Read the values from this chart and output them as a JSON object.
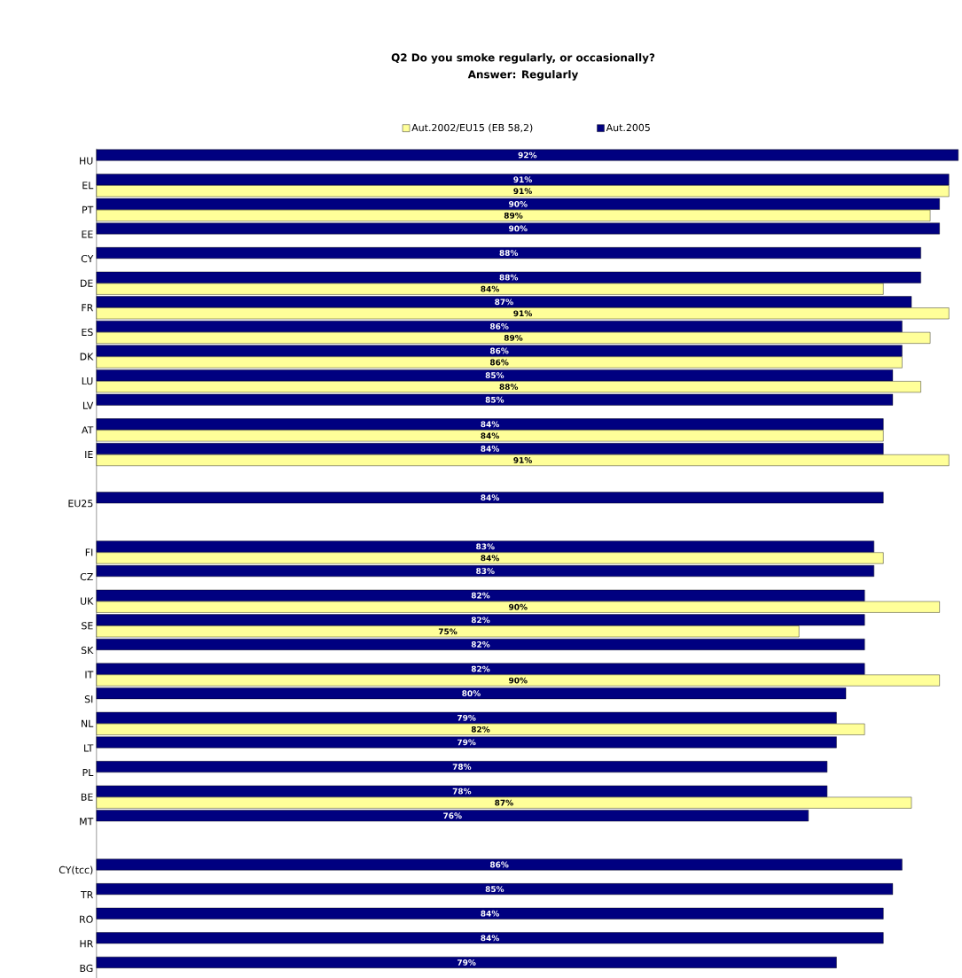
{
  "chart_data": {
    "type": "bar",
    "orientation": "horizontal",
    "title": "Q2 Do you smoke regularly, or occasionally?",
    "subtitle": "Answer: Regularly",
    "categories": [
      "HU",
      "EL",
      "PT",
      "EE",
      "CY",
      "DE",
      "FR",
      "ES",
      "DK",
      "LU",
      "LV",
      "AT",
      "IE",
      null,
      "EU25",
      null,
      "FI",
      "CZ",
      "UK",
      "SE",
      "SK",
      "IT",
      "SI",
      "NL",
      "LT",
      "PL",
      "BE",
      "MT",
      null,
      "CY(tcc)",
      "TR",
      "RO",
      "HR",
      "BG"
    ],
    "series": [
      {
        "name": "Aut.2002/EU15 (EB 58,2)",
        "color": "#ffff99",
        "values": [
          null,
          91,
          89,
          null,
          null,
          84,
          91,
          89,
          86,
          88,
          null,
          84,
          91,
          null,
          null,
          null,
          84,
          null,
          90,
          75,
          null,
          90,
          null,
          82,
          null,
          null,
          87,
          null,
          null,
          null,
          null,
          null,
          null,
          null
        ],
        "value_labels": [
          null,
          "91%",
          "89%",
          null,
          null,
          "84%",
          "91%",
          "89%",
          "86%",
          "88%",
          null,
          "84%",
          "91%",
          null,
          null,
          null,
          "84%",
          null,
          "90%",
          "75%",
          null,
          "90%",
          null,
          "82%",
          null,
          null,
          "87%",
          null,
          null,
          null,
          null,
          null,
          null,
          null
        ]
      },
      {
        "name": "Aut.2005",
        "color": "#000080",
        "values": [
          92,
          91,
          90,
          90,
          88,
          88,
          87,
          86,
          86,
          85,
          85,
          84,
          84,
          null,
          84,
          null,
          83,
          83,
          82,
          82,
          82,
          82,
          80,
          79,
          79,
          78,
          78,
          76,
          null,
          86,
          85,
          84,
          84,
          79
        ],
        "value_labels": [
          "92%",
          "91%",
          "90%",
          "90%",
          "88%",
          "88%",
          "87%",
          "86%",
          "86%",
          "85%",
          "85%",
          "84%",
          "84%",
          null,
          "84%",
          null,
          "83%",
          "83%",
          "82%",
          "82%",
          "82%",
          "82%",
          "80%",
          "79%",
          "79%",
          "78%",
          "78%",
          "76%",
          null,
          "86%",
          "85%",
          "84%",
          "84%",
          "79%"
        ]
      }
    ],
    "xlim": [
      0,
      92
    ],
    "tick_labels": "y",
    "legend": "top"
  }
}
